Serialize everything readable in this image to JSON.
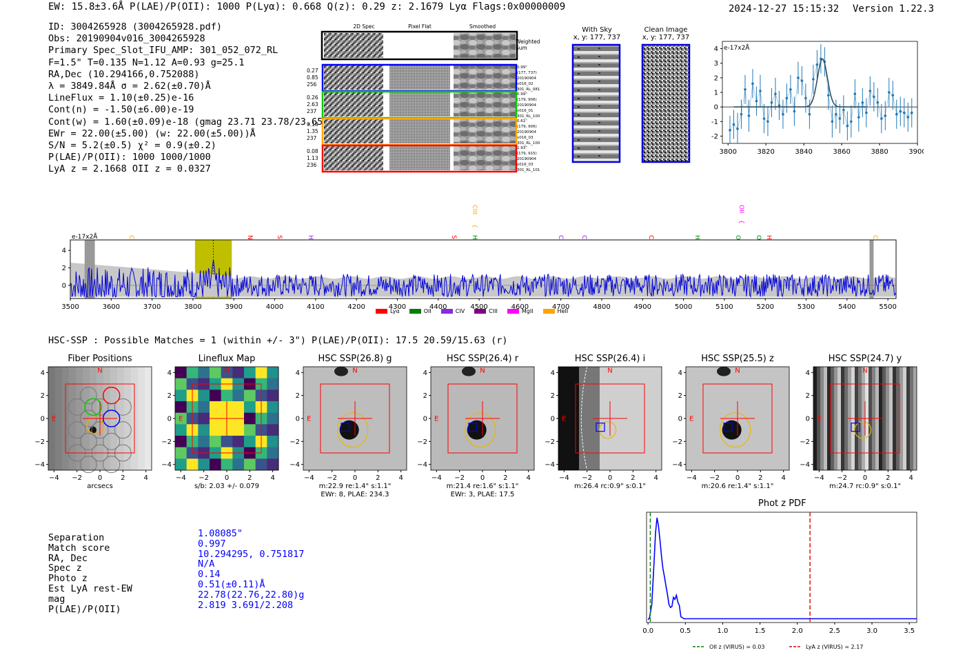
{
  "header": {
    "summary": "EW: 15.8±3.6Å  P(LAE)/P(OII): 1000  P(Lyα): 0.668  Q(z): 0.29  z: 2.1679 Lyα  Flags:0x00000009",
    "timestamp": "2024-12-27 15:15:32",
    "version": "Version 1.22.3"
  },
  "detection_info": [
    "ID: 3004265928 (3004265928.pdf)",
    "Obs: 20190904v016_3004265928",
    "Primary Spec_Slot_IFU_AMP: 301_052_072_RL",
    "F=1.5\"  T=0.135  N=1.12  A=0.93  g=25.1",
    "RA,Dec (10.294166,0.752088)",
    "λ = 3849.84Å  σ = 2.62(±0.70)Å",
    "LineFlux = 1.10(±0.25)e-16",
    "Cont(n) = -1.50(±6.00)e-19",
    "Cont(w) = 1.60(±0.09)e-18 (gmag 23.71 23.78/23.65 *)",
    "EWr = 22.00(±5.00) (w: 22.00(±5.00))Å",
    "S/N = 5.2(±0.5)  χ² = 0.9(±0.2)",
    "P(LAE)/P(OII): 1000 1000/1000",
    "LyA z = 2.1668  OII z = 0.0327"
  ],
  "cutout_headers": {
    "col1": "2D Spec",
    "col2": "Pixel Flat",
    "col3": "Smoothed",
    "weighted": "Weighted Sum"
  },
  "fiber_rows": [
    {
      "vals": [
        "0.27",
        "0.85",
        "256"
      ],
      "meta": [
        "0.99\"",
        "(177, 737)",
        "20190904",
        "v016_02",
        "301_RL_081"
      ],
      "color": "#0000ff"
    },
    {
      "vals": [
        "0.26",
        "2.63",
        "237"
      ],
      "meta": [
        "0.99\"",
        "(179, 906)",
        "20190904",
        "v016_01",
        "301_RL_100"
      ],
      "color": "#00cc00"
    },
    {
      "vals": [
        "0.18",
        "1.35",
        "237"
      ],
      "meta": [
        "0.61\"",
        "(179, 906)",
        "20190904",
        "v016_03",
        "301_RL_100"
      ],
      "color": "#ffa500"
    },
    {
      "vals": [
        "0.08",
        "1.13",
        "236"
      ],
      "meta": [
        "1.93\"",
        "(179, 915)",
        "20190904",
        "v016_03",
        "301_RL_101"
      ],
      "color": "#ff0000"
    }
  ],
  "ccd_images": {
    "with_sky": {
      "title": "With Sky",
      "coords": "x, y: 177, 737"
    },
    "clean": {
      "title": "Clean Image",
      "coords": "x, y: 177, 737"
    }
  },
  "lines": [
    {
      "name": "CIV",
      "color": "#ffa500"
    },
    {
      "name": "NV",
      "color": "#ff0000"
    },
    {
      "name": "SiII",
      "color": "#ff0000"
    },
    {
      "name": "HeII",
      "color": "#8a2be2"
    },
    {
      "name": "SiIV",
      "color": "#ff0000"
    },
    {
      "name": "CIII",
      "color": "#ffa500"
    },
    {
      "name": "Hγ",
      "color": "#008000"
    },
    {
      "name": "CII",
      "color": "#8a2be2"
    },
    {
      "name": "CIII",
      "color": "#8a2be2"
    },
    {
      "name": "CIV",
      "color": "#ff0000"
    },
    {
      "name": "Hβ",
      "color": "#008000"
    },
    {
      "name": "OII",
      "color": "#ff00ff"
    },
    {
      "name": "OIII",
      "color": "#008000"
    },
    {
      "name": "OIII",
      "color": "#008000"
    },
    {
      "name": "HeII",
      "color": "#ff0000"
    },
    {
      "name": "CII",
      "color": "#ffa500"
    }
  ],
  "legend": [
    {
      "label": "Lyα",
      "color": "#ff0000"
    },
    {
      "label": "OII",
      "color": "#008000"
    },
    {
      "label": "CIV",
      "color": "#8a2be2"
    },
    {
      "label": "CIII",
      "color": "#800080"
    },
    {
      "label": "MgII",
      "color": "#ff00ff"
    },
    {
      "label": "HeII",
      "color": "#ffa500"
    }
  ],
  "hsc_header": "HSC-SSP : Possible Matches = 1 (within +/- 3\")  P(LAE)/P(OII): 17.5 20.59/15.63 (r)",
  "cutouts": [
    {
      "title": "Fiber Positions",
      "caption1": "arcsecs",
      "caption2": ""
    },
    {
      "title": "Lineflux Map",
      "caption1": "s/b: 2.03 +/- 0.079",
      "caption2": ""
    },
    {
      "title": "HSC SSP(26.8) g",
      "caption1": "m:22.9  re:1.4\"  s:1.1\"",
      "caption2": "EWr: 8, PLAE: 234.3"
    },
    {
      "title": "HSC SSP(26.4) r",
      "caption1": "m:21.4  re:1.6\"  s:1.1\"",
      "caption2": "EWr: 3, PLAE: 17.5"
    },
    {
      "title": "HSC SSP(26.4) i",
      "caption1": "m:26.4 rc:0.9\"  s:0.1\"",
      "caption2": ""
    },
    {
      "title": "HSC SSP(25.5) z",
      "caption1": "m:20.6  re:1.4\"  s:1.1\"",
      "caption2": ""
    },
    {
      "title": "HSC SSP(24.7) y",
      "caption1": "m:24.7 rc:0.9\"  s:0.1\"",
      "caption2": ""
    }
  ],
  "match_table": {
    "labels": [
      "Separation",
      "Match score",
      "RA, Dec",
      "Spec z",
      "Photo z",
      "Est LyA rest-EW",
      "mag",
      "P(LAE)/P(OII)"
    ],
    "values": [
      "1.08085\"",
      "0.997",
      "10.294295, 0.751817",
      "N/A",
      "0.14",
      "0.51(±0.11)Å",
      "22.78(22.76,22.80)g",
      "2.819 3.691/2.208"
    ]
  },
  "chart_data": [
    {
      "type": "line",
      "title": "",
      "ylabel": "e-17x2Å",
      "xlim": [
        3797,
        3900
      ],
      "ylim": [
        -2.5,
        4.5
      ],
      "xticks": [
        3800,
        3820,
        3840,
        3860,
        3880,
        3900
      ],
      "yticks": [
        -2,
        -1,
        0,
        1,
        2,
        3,
        4
      ],
      "x": [
        3801,
        3803,
        3805,
        3807,
        3809,
        3811,
        3813,
        3815,
        3817,
        3819,
        3821,
        3823,
        3825,
        3827,
        3829,
        3831,
        3833,
        3835,
        3837,
        3839,
        3841,
        3843,
        3845,
        3847,
        3849,
        3851,
        3853,
        3855,
        3857,
        3859,
        3861,
        3863,
        3865,
        3867,
        3869,
        3871,
        3873,
        3875,
        3877,
        3879,
        3881,
        3883,
        3885,
        3887,
        3889,
        3891,
        3893,
        3895,
        3897
      ],
      "values": [
        -1.6,
        -1.2,
        -1.5,
        -0.5,
        1.2,
        -0.6,
        1.6,
        0.4,
        1.1,
        -0.8,
        -1.0,
        0.3,
        0.9,
        0.1,
        -0.5,
        0.6,
        1.2,
        -0.3,
        2.0,
        1.8,
        0.6,
        -0.5,
        1.9,
        2.9,
        3.3,
        3.1,
        0.8,
        -1.0,
        -0.5,
        -0.8,
        -0.2,
        -1.3,
        -1.0,
        0.9,
        -0.7,
        0.3,
        -0.4,
        1.1,
        0.7,
        0.3,
        -0.8,
        -0.6,
        1.0,
        0.8,
        -0.5,
        -0.3,
        -0.4,
        -0.7,
        -0.4
      ],
      "errors": [
        1.0,
        1.0,
        1.1,
        1.0,
        1.0,
        1.1,
        1.0,
        1.0,
        1.1,
        1.0,
        1.0,
        1.0,
        1.1,
        1.0,
        1.0,
        1.0,
        1.0,
        1.0,
        1.1,
        1.0,
        1.0,
        1.0,
        1.0,
        1.0,
        1.0,
        1.0,
        1.0,
        1.1,
        1.0,
        1.0,
        1.0,
        1.0,
        1.1,
        1.0,
        1.0,
        1.0,
        1.0,
        1.0,
        1.0,
        1.0,
        1.0,
        1.0,
        1.0,
        1.0,
        1.0,
        1.0,
        1.0,
        1.0,
        1.0
      ],
      "fit": {
        "center": 3849.84,
        "sigma": 2.62,
        "amplitude": 3.3
      }
    },
    {
      "type": "line",
      "title": "",
      "ylabel": "e-17x2Å",
      "xlim": [
        3500,
        5520
      ],
      "ylim": [
        -1.5,
        5.2
      ],
      "xticks": [
        3500,
        3600,
        3700,
        3800,
        3900,
        4000,
        4100,
        4200,
        4300,
        4400,
        4500,
        4600,
        4700,
        4800,
        4900,
        5000,
        5100,
        5200,
        5300,
        5400,
        5500
      ],
      "yticks": [
        0,
        2,
        4
      ],
      "highlight_range": [
        3805,
        3895
      ],
      "line_center": 3849.84
    },
    {
      "type": "line",
      "title": "Phot z PDF",
      "xlim": [
        -0.02,
        3.6
      ],
      "xticks": [
        0.0,
        0.5,
        1.0,
        1.5,
        2.0,
        2.5,
        3.0,
        3.5
      ],
      "vlines": [
        {
          "x": 0.03,
          "label": "OII z (VIRUS) = 0.03",
          "color": "#008000"
        },
        {
          "x": 2.17,
          "label": "LyA z (VIRUS) = 2.17",
          "color": "#dd0000"
        }
      ],
      "pdf_x": [
        0.0,
        0.02,
        0.05,
        0.08,
        0.1,
        0.12,
        0.14,
        0.16,
        0.18,
        0.2,
        0.22,
        0.24,
        0.26,
        0.28,
        0.3,
        0.32,
        0.34,
        0.36,
        0.38,
        0.4,
        0.42,
        0.44,
        0.46,
        0.48,
        0.5,
        0.6,
        1.0,
        2.0,
        3.6
      ],
      "pdf_y": [
        0.0,
        0.02,
        0.15,
        0.55,
        0.85,
        1.0,
        0.92,
        0.78,
        0.62,
        0.5,
        0.42,
        0.33,
        0.25,
        0.15,
        0.12,
        0.13,
        0.22,
        0.2,
        0.24,
        0.17,
        0.14,
        0.03,
        0.02,
        0.01,
        0.01,
        0.01,
        0.01,
        0.01,
        0.01
      ]
    }
  ]
}
